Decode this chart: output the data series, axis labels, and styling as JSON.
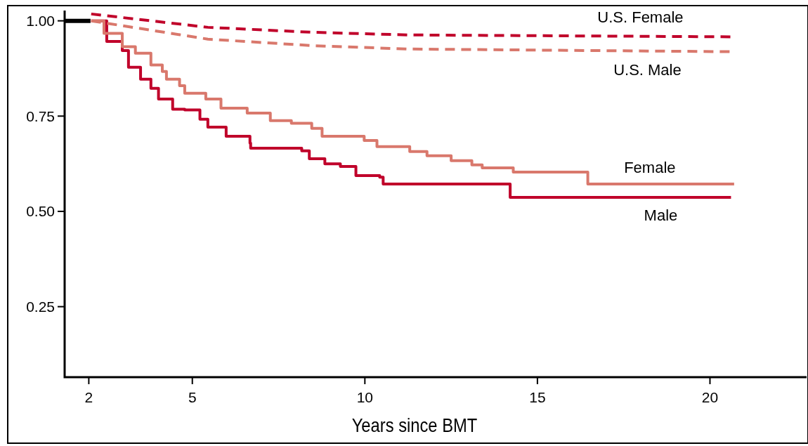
{
  "chart_data": {
    "type": "step",
    "xlabel": "Years since BMT",
    "xlim": [
      1.3,
      22.8
    ],
    "ylim": [
      0.065,
      1.027
    ],
    "xticks": [
      2,
      5,
      10,
      15,
      20
    ],
    "yticks": [
      {
        "value": 1,
        "label": "1.00"
      },
      {
        "value": 0.75,
        "label": "0.75"
      },
      {
        "value": 0.5,
        "label": "0.50"
      },
      {
        "value": 0.25,
        "label": "0.25"
      }
    ],
    "grid": false,
    "series": [
      {
        "name": "Male",
        "color": "#c0002a",
        "line_style": "solid",
        "x": [
          2.07,
          2.52,
          2.97,
          3.15,
          3.5,
          3.8,
          4.02,
          4.43,
          4.78,
          5.22,
          5.45,
          5.98,
          6.67,
          6.69,
          8.17,
          8.39,
          8.84,
          9.29,
          9.74,
          10.43,
          10.53,
          14.21,
          20.61
        ],
        "values": [
          1,
          0.946,
          0.922,
          0.878,
          0.847,
          0.823,
          0.795,
          0.768,
          0.766,
          0.742,
          0.721,
          0.697,
          0.679,
          0.666,
          0.659,
          0.638,
          0.625,
          0.618,
          0.594,
          0.59,
          0.572,
          0.537,
          0.537
        ]
      },
      {
        "name": "Female",
        "color": "#d9786c",
        "line_style": "solid",
        "x": [
          2.07,
          2.44,
          2.97,
          3.35,
          3.8,
          4.13,
          4.25,
          4.63,
          4.78,
          5.39,
          5.83,
          6.59,
          7.26,
          7.87,
          8.46,
          8.76,
          9.98,
          10.35,
          11.3,
          11.8,
          12.5,
          13.1,
          13.4,
          14.3,
          16.46,
          20.7
        ],
        "values": [
          1,
          0.967,
          0.932,
          0.915,
          0.884,
          0.867,
          0.847,
          0.83,
          0.81,
          0.795,
          0.771,
          0.758,
          0.738,
          0.731,
          0.718,
          0.697,
          0.686,
          0.67,
          0.657,
          0.646,
          0.633,
          0.622,
          0.614,
          0.603,
          0.572,
          0.572
        ]
      },
      {
        "name": "U.S. Female",
        "color": "#c0002a",
        "type": "line",
        "line_style": "dashed",
        "x": [
          2.07,
          5.45,
          8.46,
          11.24,
          20.61
        ],
        "values": [
          1.018,
          0.983,
          0.97,
          0.963,
          0.958
        ]
      },
      {
        "name": "U.S. Male",
        "color": "#d9786c",
        "type": "line",
        "line_style": "dashed",
        "x": [
          2.07,
          5.45,
          8.46,
          11.24,
          20.61
        ],
        "values": [
          1,
          0.952,
          0.935,
          0.926,
          0.919
        ]
      },
      {
        "color": "#000000",
        "type": "line",
        "line_style": "solid",
        "x": [
          1.3,
          2.05
        ],
        "values": [
          1,
          1
        ]
      }
    ]
  }
}
